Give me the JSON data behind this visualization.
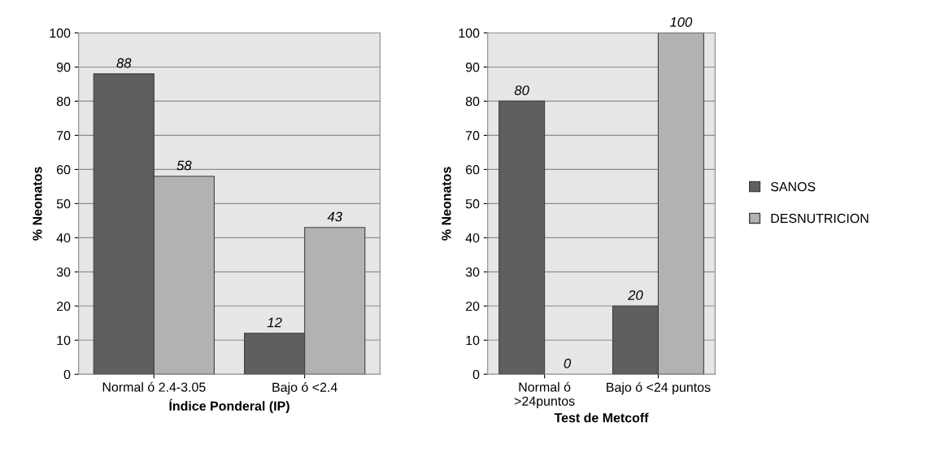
{
  "chart_data": [
    {
      "type": "bar",
      "xlabel": "Índice Ponderal (IP)",
      "ylabel": "% Neonatos",
      "categories": [
        "Normal ó 2.4-3.05",
        "Bajo ó <2.4"
      ],
      "series": [
        {
          "color": "#5f5f5f",
          "values": [
            88,
            12
          ]
        },
        {
          "color": "#b2b2b2",
          "values": [
            58,
            43
          ]
        }
      ],
      "ylim": [
        0,
        100
      ],
      "yticks": [
        0,
        10,
        20,
        30,
        40,
        50,
        60,
        70,
        80,
        90,
        100
      ],
      "grid": "y",
      "data_labels": true
    },
    {
      "type": "bar",
      "xlabel": "Test de Metcoff",
      "ylabel": "% Neonatos",
      "categories": [
        "Normal ó\n>24puntos",
        "Bajo ó <24 puntos"
      ],
      "series": [
        {
          "name": "SANOS",
          "color": "#5f5f5f",
          "values": [
            80,
            20
          ]
        },
        {
          "name": "DESNUTRICION",
          "color": "#b2b2b2",
          "values": [
            0,
            100
          ]
        }
      ],
      "ylim": [
        0,
        100
      ],
      "yticks": [
        0,
        10,
        20,
        30,
        40,
        50,
        60,
        70,
        80,
        90,
        100
      ],
      "grid": "y",
      "data_labels": true,
      "legend": "right"
    }
  ]
}
